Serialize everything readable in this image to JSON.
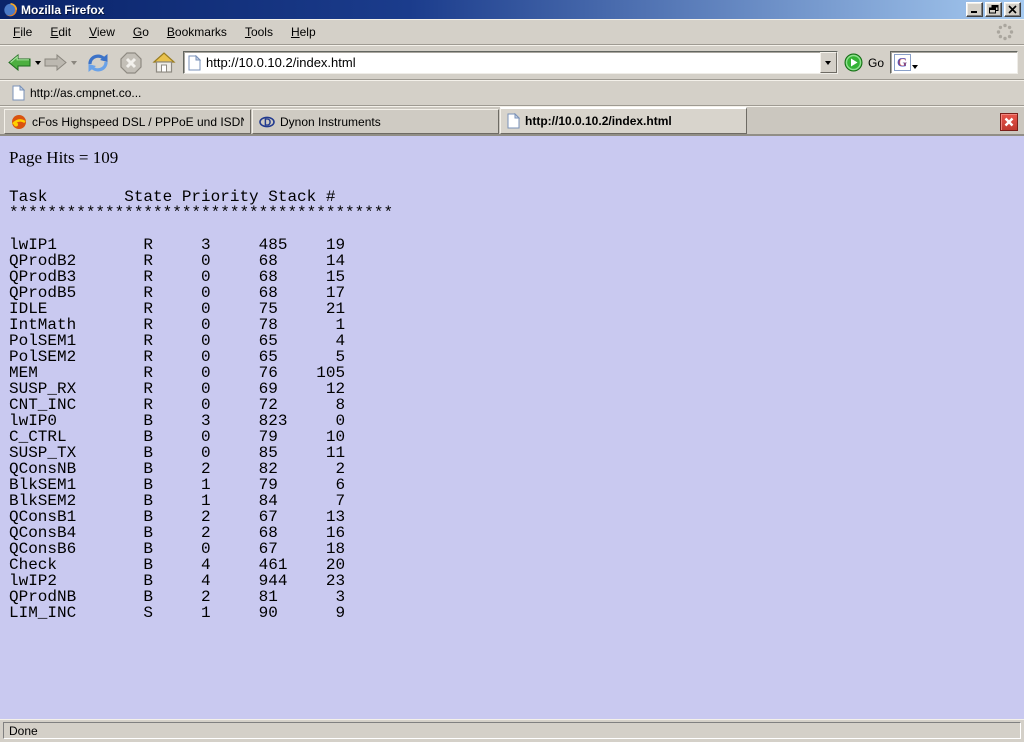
{
  "window": {
    "title": "Mozilla Firefox",
    "controls": {
      "minimize": "minimize",
      "restore": "restore",
      "close": "close"
    }
  },
  "menubar": {
    "items": [
      {
        "label": "File"
      },
      {
        "label": "Edit"
      },
      {
        "label": "View"
      },
      {
        "label": "Go"
      },
      {
        "label": "Bookmarks"
      },
      {
        "label": "Tools"
      },
      {
        "label": "Help"
      }
    ]
  },
  "navbar": {
    "url_value": "http://10.0.10.2/index.html",
    "go_label": "Go",
    "search_value": ""
  },
  "bookmarks_bar": {
    "items": [
      {
        "label": "http://as.cmpnet.co..."
      }
    ]
  },
  "tab_strip": {
    "tabs": [
      {
        "label": "cFos Highspeed DSL / PPPoE und ISDN CAP...",
        "icon": "cfos-icon",
        "active": false
      },
      {
        "label": "Dynon Instruments",
        "icon": "dynon-icon",
        "active": false
      },
      {
        "label": "http://10.0.10.2/index.html",
        "icon": "page-icon",
        "active": true
      }
    ]
  },
  "content": {
    "page_hits_label": "Page Hits = 109",
    "task_table": {
      "header": "Task        State Priority Stack #",
      "separator": "****************************************",
      "columns": [
        "Task",
        "State",
        "Priority",
        "Stack",
        "#"
      ],
      "rows": [
        [
          "lwIP1",
          "R",
          "3",
          "485",
          "19"
        ],
        [
          "QProdB2",
          "R",
          "0",
          "68",
          "14"
        ],
        [
          "QProdB3",
          "R",
          "0",
          "68",
          "15"
        ],
        [
          "QProdB5",
          "R",
          "0",
          "68",
          "17"
        ],
        [
          "IDLE",
          "R",
          "0",
          "75",
          "21"
        ],
        [
          "IntMath",
          "R",
          "0",
          "78",
          "1"
        ],
        [
          "PolSEM1",
          "R",
          "0",
          "65",
          "4"
        ],
        [
          "PolSEM2",
          "R",
          "0",
          "65",
          "5"
        ],
        [
          "MEM",
          "R",
          "0",
          "76",
          "105"
        ],
        [
          "SUSP_RX",
          "R",
          "0",
          "69",
          "12"
        ],
        [
          "CNT_INC",
          "R",
          "0",
          "72",
          "8"
        ],
        [
          "lwIP0",
          "B",
          "3",
          "823",
          "0"
        ],
        [
          "C_CTRL",
          "B",
          "0",
          "79",
          "10"
        ],
        [
          "SUSP_TX",
          "B",
          "0",
          "85",
          "11"
        ],
        [
          "QConsNB",
          "B",
          "2",
          "82",
          "2"
        ],
        [
          "BlkSEM1",
          "B",
          "1",
          "79",
          "6"
        ],
        [
          "BlkSEM2",
          "B",
          "1",
          "84",
          "7"
        ],
        [
          "QConsB1",
          "B",
          "2",
          "67",
          "13"
        ],
        [
          "QConsB4",
          "B",
          "2",
          "68",
          "16"
        ],
        [
          "QConsB6",
          "B",
          "0",
          "67",
          "18"
        ],
        [
          "Check",
          "B",
          "4",
          "461",
          "20"
        ],
        [
          "lwIP2",
          "B",
          "4",
          "944",
          "23"
        ],
        [
          "QProdNB",
          "B",
          "2",
          "81",
          "3"
        ],
        [
          "LIM_INC",
          "S",
          "1",
          "90",
          "9"
        ]
      ]
    }
  },
  "statusbar": {
    "text": "Done"
  },
  "colors": {
    "page_bg": "#c9c9f0",
    "chrome_gray": "#d4d0c8",
    "title_gradient_start": "#0a246a",
    "title_gradient_end": "#a6caf0",
    "tab_close_red": "#d0453b",
    "back_arrow_green": "#4caf3f",
    "reload_blue": "#3b72c8"
  }
}
